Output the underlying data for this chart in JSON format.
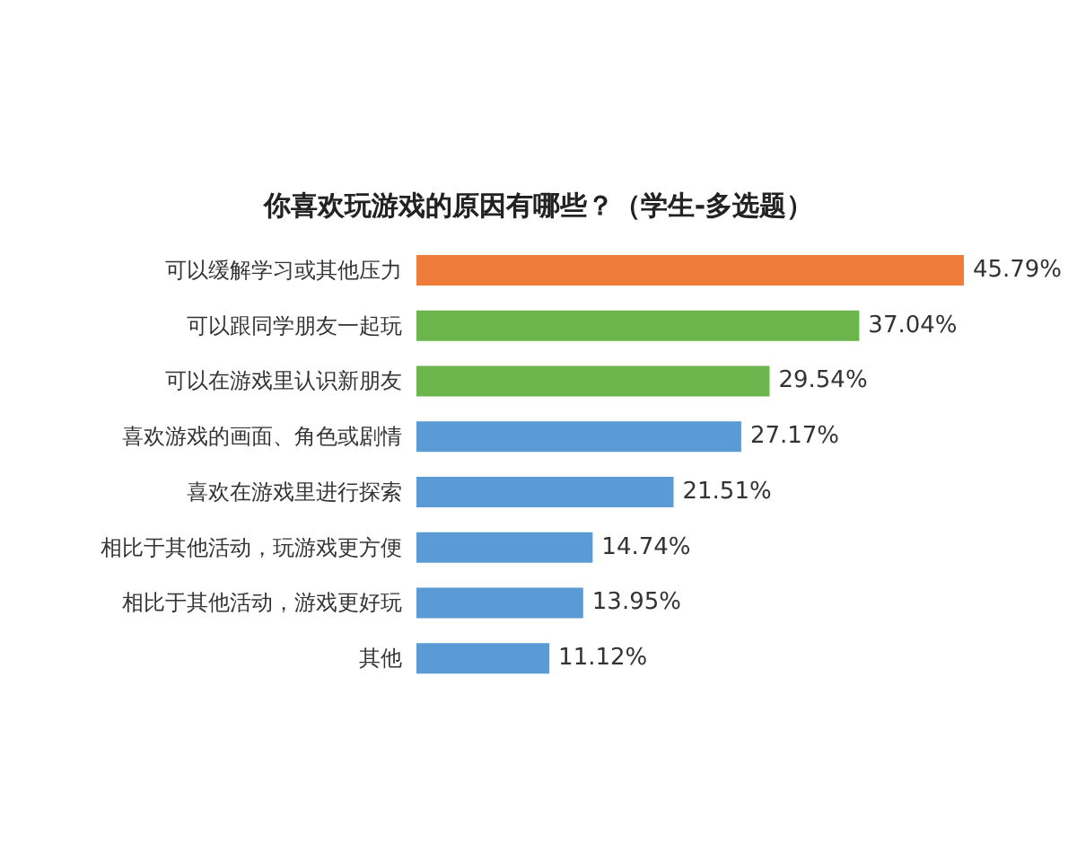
{
  "chart_data": {
    "type": "bar",
    "orientation": "horizontal",
    "title": "你喜欢玩游戏的原因有哪些？（学生-多选题）",
    "categories": [
      "可以缓解学习或其他压力",
      "可以跟同学朋友一起玩",
      "可以在游戏里认识新朋友",
      "喜欢游戏的画面、角色或剧情",
      "喜欢在游戏里进行探索",
      "相比于其他活动，玩游戏更方便",
      "相比于其他活动，游戏更好玩",
      "其他"
    ],
    "values": [
      45.79,
      37.04,
      29.54,
      27.17,
      21.51,
      14.74,
      13.95,
      11.12
    ],
    "value_labels": [
      "45.79%",
      "37.04%",
      "29.54%",
      "27.17%",
      "21.51%",
      "14.74%",
      "13.95%",
      "11.12%"
    ],
    "colors": [
      "#f07c3c",
      "#6cb44c",
      "#6cb44c",
      "#5b9bd5",
      "#5b9bd5",
      "#5b9bd5",
      "#5b9bd5",
      "#5b9bd5"
    ]
  }
}
